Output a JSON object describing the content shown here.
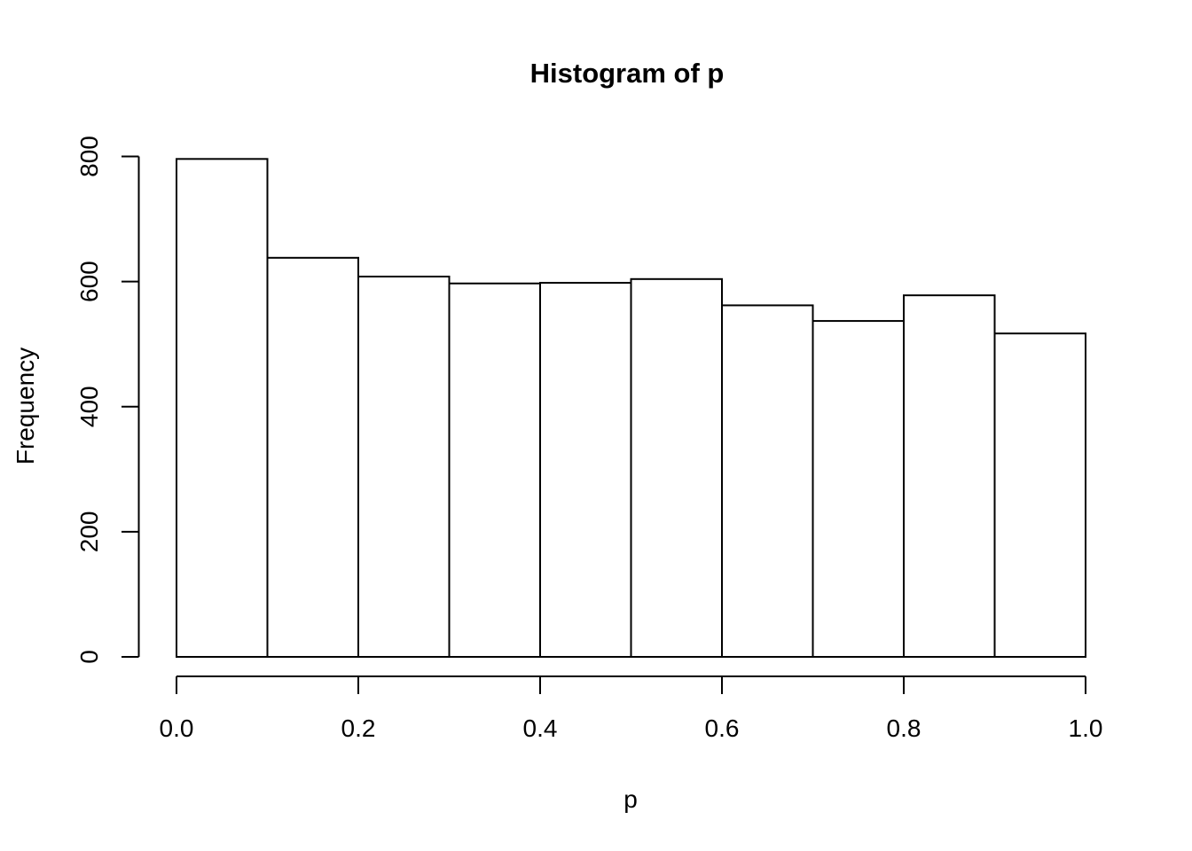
{
  "figure": {
    "background_color": "#ffffff"
  },
  "chart_data": {
    "type": "bar",
    "chart_kind": "histogram",
    "title": "Histogram of p",
    "xlabel": "p",
    "ylabel": "Frequency",
    "bin_edges": [
      0.0,
      0.1,
      0.2,
      0.3,
      0.4,
      0.5,
      0.6,
      0.7,
      0.8,
      0.9,
      1.0
    ],
    "values": [
      796,
      638,
      608,
      597,
      598,
      604,
      562,
      537,
      578,
      517
    ],
    "x_tick_labels": [
      "0.0",
      "0.2",
      "0.4",
      "0.6",
      "0.8",
      "1.0"
    ],
    "x_tick_values": [
      0.0,
      0.2,
      0.4,
      0.6,
      0.8,
      1.0
    ],
    "y_tick_labels": [
      "0",
      "200",
      "400",
      "600",
      "800"
    ],
    "y_tick_values": [
      0,
      200,
      400,
      600,
      800
    ],
    "xlim": [
      0.0,
      1.0
    ],
    "ylim": [
      0,
      800
    ],
    "grid": false,
    "legend": false,
    "bar_fill_color": "#ffffff",
    "line_color": "#000000"
  }
}
